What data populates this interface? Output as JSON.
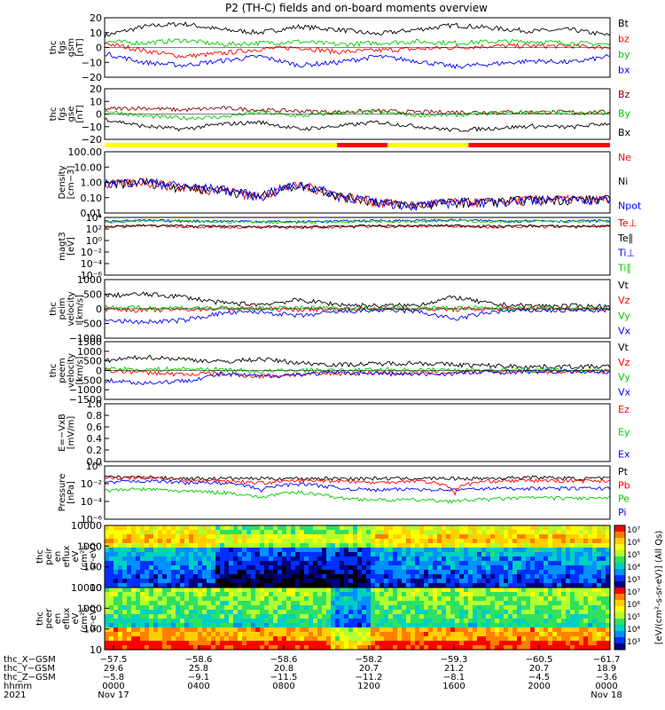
{
  "title": "P2 (TH-C) fields and on-board moments overview",
  "colors": {
    "black": "#000000",
    "red": "#ff0000",
    "green": "#00cc00",
    "blue": "#0000ff",
    "yellow": "#ffff00",
    "darkred": "#8b0000",
    "axis": "#000000"
  },
  "chart_data": [
    {
      "id": "fgs_gsm",
      "type": "line",
      "ylabel": [
        "thc",
        "fgs",
        "gsm",
        "[nT]"
      ],
      "ylim": [
        -20,
        20
      ],
      "yticks": [
        "20",
        "10",
        "0",
        "−10",
        "−20"
      ],
      "series": [
        {
          "name": "Bt",
          "color": "black",
          "values": [
            8,
            14,
            16,
            12,
            10,
            14,
            12,
            9,
            12,
            15,
            13,
            11,
            12,
            8
          ]
        },
        {
          "name": "bz",
          "color": "red",
          "values": [
            3,
            -2,
            -6,
            -4,
            -1,
            0,
            -3,
            -2,
            -1,
            0,
            1,
            1,
            1,
            0
          ]
        },
        {
          "name": "by",
          "color": "green",
          "values": [
            4,
            3,
            5,
            2,
            3,
            4,
            2,
            3,
            4,
            3,
            4,
            4,
            3,
            2
          ]
        },
        {
          "name": "bx",
          "color": "blue",
          "values": [
            -4,
            -10,
            -12,
            -9,
            -6,
            -12,
            -10,
            -6,
            -9,
            -13,
            -11,
            -9,
            -10,
            -6
          ]
        }
      ]
    },
    {
      "id": "fgs_gse",
      "type": "line",
      "ylabel": [
        "thc",
        "fgs",
        "gse",
        "[nT]"
      ],
      "ylim": [
        -25,
        25
      ],
      "yticks": [
        "20",
        "10",
        "0",
        "−10",
        "−20"
      ],
      "series": [
        {
          "name": "Bz",
          "color": "darkred",
          "values": [
            5,
            6,
            4,
            6,
            4,
            3,
            2,
            3,
            2,
            2,
            2,
            2,
            2,
            2
          ]
        },
        {
          "name": "By",
          "color": "green",
          "values": [
            3,
            -2,
            -4,
            -3,
            2,
            -2,
            1,
            2,
            -1,
            -1,
            1,
            2,
            1,
            1
          ]
        },
        {
          "name": "Bx",
          "color": "black",
          "values": [
            -5,
            -12,
            -15,
            -10,
            -8,
            -15,
            -12,
            -8,
            -12,
            -16,
            -14,
            -12,
            -13,
            -9
          ]
        }
      ]
    },
    {
      "id": "density",
      "type": "line",
      "ylabel": [
        "Density",
        "[cm−3]"
      ],
      "log": true,
      "ylim": [
        0.1,
        100
      ],
      "yticks": [
        "100.00",
        "10.00",
        "1.00",
        "0.10",
        "0.01"
      ],
      "series": [
        {
          "name": "Ne",
          "color": "red",
          "values": [
            2,
            3,
            1.5,
            1.2,
            0.5,
            2,
            0.6,
            0.3,
            0.2,
            0.3,
            0.3,
            0.4,
            0.4,
            0.4
          ]
        },
        {
          "name": "Ni",
          "color": "black",
          "values": [
            2,
            3,
            1.5,
            1.2,
            0.5,
            2,
            0.6,
            0.3,
            0.2,
            0.3,
            0.3,
            0.4,
            0.4,
            0.4
          ]
        },
        {
          "name": "Npot",
          "color": "blue",
          "values": [
            2.5,
            3,
            1.8,
            1.3,
            0.5,
            2,
            0.6,
            0.3,
            0.2,
            0.3,
            0.3,
            0.4,
            0.4,
            0.4
          ]
        }
      ]
    },
    {
      "id": "temperature",
      "type": "line",
      "ylabel": [
        "magt3",
        "[eV]"
      ],
      "log": true,
      "ylim": [
        1e-06,
        10000
      ],
      "yticks": [
        "10⁴",
        "10²",
        "10⁰",
        "10⁻²",
        "10⁻⁴",
        "10⁻⁶"
      ],
      "series": [
        {
          "name": "Te⊥",
          "color": "red",
          "values": [
            200,
            300,
            250,
            200,
            180,
            150,
            200,
            250,
            250,
            300,
            200,
            250,
            200,
            250
          ]
        },
        {
          "name": "Te∥",
          "color": "black",
          "values": [
            250,
            350,
            300,
            250,
            200,
            180,
            250,
            300,
            300,
            350,
            250,
            300,
            250,
            300
          ]
        },
        {
          "name": "Ti⊥",
          "color": "blue",
          "values": [
            2000,
            2500,
            2200,
            2000,
            1800,
            1500,
            2000,
            2500,
            2500,
            3000,
            2000,
            2500,
            2000,
            2500
          ]
        },
        {
          "name": "Ti∥",
          "color": "green",
          "values": [
            1500,
            2000,
            1800,
            1600,
            1500,
            1200,
            1600,
            2000,
            2000,
            2500,
            1600,
            2000,
            1600,
            2000
          ]
        }
      ]
    },
    {
      "id": "peim_velocity",
      "type": "line",
      "ylabel": [
        "thc",
        "peim",
        "velocity",
        "[km/s]"
      ],
      "ylim": [
        -1000,
        1000
      ],
      "yticks": [
        "1000",
        "500",
        "0",
        "−500",
        "−1000"
      ],
      "series": [
        {
          "name": "Vt",
          "color": "black",
          "values": [
            450,
            500,
            420,
            200,
            150,
            300,
            150,
            100,
            120,
            400,
            150,
            100,
            100,
            80
          ]
        },
        {
          "name": "Vz",
          "color": "red",
          "values": [
            0,
            -50,
            -20,
            10,
            0,
            -20,
            0,
            10,
            0,
            -20,
            0,
            10,
            0,
            0
          ]
        },
        {
          "name": "Vy",
          "color": "green",
          "values": [
            50,
            30,
            40,
            20,
            10,
            30,
            10,
            20,
            10,
            30,
            20,
            10,
            10,
            10
          ]
        },
        {
          "name": "Vx",
          "color": "blue",
          "values": [
            -400,
            -450,
            -400,
            -150,
            -100,
            -250,
            -100,
            -50,
            -80,
            -350,
            -100,
            -50,
            -60,
            -40
          ]
        }
      ]
    },
    {
      "id": "peem_velocity",
      "type": "line",
      "ylabel": [
        "thc",
        "peem",
        "velocity",
        "[km/s]"
      ],
      "ylim": [
        -1500,
        1500
      ],
      "yticks": [
        "1500",
        "1000",
        "500",
        "0",
        "−500",
        "−1000",
        "−1500"
      ],
      "series": [
        {
          "name": "Vt",
          "color": "black",
          "values": [
            500,
            700,
            600,
            450,
            600,
            400,
            300,
            350,
            400,
            300,
            250,
            200,
            200,
            200
          ]
        },
        {
          "name": "Vz",
          "color": "red",
          "values": [
            0,
            -100,
            -200,
            -150,
            -300,
            -200,
            -150,
            -100,
            -150,
            -100,
            -50,
            -50,
            -50,
            -50
          ]
        },
        {
          "name": "Vy",
          "color": "green",
          "values": [
            100,
            50,
            80,
            50,
            -50,
            20,
            -20,
            50,
            20,
            30,
            20,
            10,
            10,
            10
          ]
        },
        {
          "name": "Vx",
          "color": "blue",
          "values": [
            -500,
            -650,
            -550,
            -200,
            -300,
            -200,
            -100,
            -150,
            -200,
            -150,
            -80,
            -60,
            -50,
            -50
          ]
        }
      ]
    },
    {
      "id": "efield",
      "type": "line",
      "ylabel": [
        "E=−VxB",
        "[mV/m]"
      ],
      "ylim": [
        0,
        1
      ],
      "yticks": [
        "1.0",
        "0.8",
        "0.6",
        "0.4",
        "0.2",
        "0.0"
      ],
      "series": [
        {
          "name": "Ez",
          "color": "red",
          "values": []
        },
        {
          "name": "Ey",
          "color": "green",
          "values": []
        },
        {
          "name": "Ex",
          "color": "blue",
          "values": []
        }
      ]
    },
    {
      "id": "pressure",
      "type": "line",
      "ylabel": [
        "Pressure",
        "[nPa]"
      ],
      "log": true,
      "ylim": [
        1e-07,
        1
      ],
      "yticks": [
        "10⁰",
        "10⁻²",
        "10⁻⁴",
        "10⁻⁶"
      ],
      "series": [
        {
          "name": "Pt",
          "color": "black",
          "values": [
            0.03,
            0.03,
            0.02,
            0.02,
            0.02,
            0.02,
            0.02,
            0.02,
            0.02,
            0.02,
            0.02,
            0.03,
            0.02,
            0.02
          ]
        },
        {
          "name": "Pb",
          "color": "red",
          "values": [
            0.02,
            0.03,
            0.01,
            0.01,
            0.005,
            0.01,
            0.01,
            0.005,
            0.01,
            0.0001,
            0.01,
            0.01,
            0.01,
            0.01
          ]
        },
        {
          "name": "Pe",
          "color": "green",
          "values": [
            0.0005,
            0.0008,
            0.0004,
            0.0003,
            5e-05,
            0.0003,
            5e-05,
            3e-05,
            3e-05,
            2e-05,
            4e-05,
            6e-05,
            5e-05,
            5e-05
          ]
        },
        {
          "name": "Pi",
          "color": "blue",
          "values": [
            0.005,
            0.01,
            0.006,
            0.005,
            0.0005,
            0.004,
            0.001,
            0.0006,
            0.0008,
            0.0006,
            0.001,
            0.001,
            0.001,
            0.001
          ]
        }
      ]
    },
    {
      "id": "peir_spec",
      "type": "heatmap",
      "ylabel": [
        "thc",
        "peir",
        "en",
        "eflux",
        "eV",
        "(cm²s-",
        "sr-eV)"
      ],
      "yticks": [
        "10000",
        "1000",
        "100",
        "10"
      ]
    },
    {
      "id": "peer_spec",
      "type": "heatmap",
      "ylabel": [
        "thc",
        "peer",
        "en",
        "eflux",
        "eV",
        "(cm²s-",
        "sr-eV)"
      ],
      "yticks": [
        "10000",
        "1000",
        "100",
        "10"
      ]
    }
  ],
  "legend_labels": [
    "Bt",
    "bz",
    "by",
    "bx",
    "Bz",
    "By",
    "Bx",
    "Ne",
    "Ni",
    "Npot",
    "Te⊥",
    "Te∥",
    "Ti⊥",
    "Ti∥",
    "Vt",
    "Vz",
    "Vy",
    "Vx",
    "Vt",
    "Vz",
    "Vy",
    "Vx",
    "Ez",
    "Ey",
    "Ex",
    "Pt",
    "Pb",
    "Pe",
    "Pi"
  ],
  "colorbar": {
    "ticks": [
      "10⁷",
      "10⁶",
      "10⁵",
      "10⁴",
      "10³"
    ],
    "label": "[eV/(cm²-s-sr-eV)] (All Qs)"
  },
  "mode_bar": [
    {
      "from": 0,
      "to": 0.46,
      "color": "yellow"
    },
    {
      "from": 0.46,
      "to": 0.56,
      "color": "red"
    },
    {
      "from": 0.56,
      "to": 0.72,
      "color": "yellow"
    },
    {
      "from": 0.72,
      "to": 1,
      "color": "red"
    }
  ],
  "footer": {
    "rows": [
      {
        "label": "thc_X−GSM",
        "values": [
          "−57.5",
          "−58.6",
          "−58.6",
          "−58.2",
          "−59.3",
          "−60.5",
          "−61.7"
        ]
      },
      {
        "label": "thc_Y−GSM",
        "values": [
          "29.6",
          "25.8",
          "20.8",
          "20.7",
          "21.2",
          "20.7",
          "18.9"
        ]
      },
      {
        "label": "thc_Z−GSM",
        "values": [
          "−5.8",
          "−9.1",
          "−11.5",
          "−11.2",
          "−8.1",
          "−4.5",
          "−3.6"
        ]
      },
      {
        "label": "hhmm",
        "values": [
          "0000",
          "0400",
          "0800",
          "1200",
          "1600",
          "2000",
          "0000"
        ]
      },
      {
        "label": "2021",
        "values": [
          "Nov 17",
          "",
          "",
          "",
          "",
          "",
          "Nov 18"
        ]
      }
    ]
  }
}
